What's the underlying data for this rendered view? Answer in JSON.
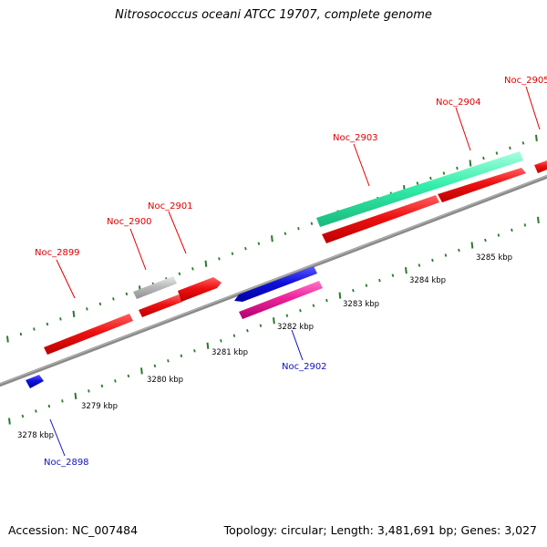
{
  "title": "Nitrosococcus oceani ATCC 19707, complete genome",
  "footer": {
    "accession": "Accession: NC_007484",
    "stats": "Topology: circular; Length: 3,481,691 bp; Genes: 3,027"
  },
  "ticks": [
    "3278 kbp",
    "3279 kbp",
    "3280 kbp",
    "3281 kbp",
    "3282 kbp",
    "3283 kbp",
    "3284 kbp",
    "3285 kbp"
  ],
  "gene_labels": {
    "noc2898": "Noc_2898",
    "noc2899": "Noc_2899",
    "noc2900": "Noc_2900",
    "noc2901": "Noc_2901",
    "noc2902": "Noc_2902",
    "noc2903": "Noc_2903",
    "noc2904": "Noc_2904",
    "noc2905": "Noc_2905"
  },
  "colors": {
    "red_gene": "#ee1111",
    "blue_gene": "#1111dd",
    "pink_gene": "#ee2299",
    "teal_gene": "#33eeaa",
    "gray_gene": "#bbbbbb",
    "backbone": "#8a8a8a",
    "tick_green": "#2a7a2a"
  }
}
